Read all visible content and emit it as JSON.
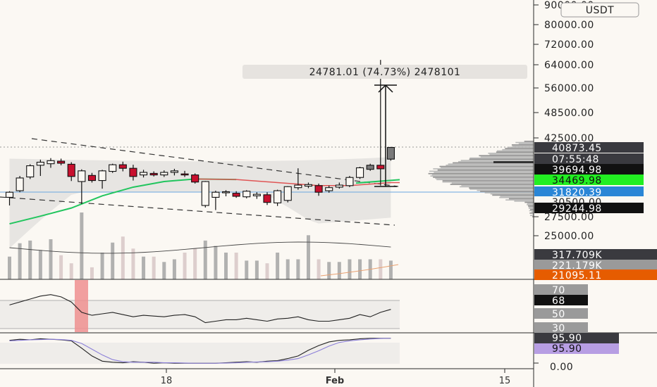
{
  "currency_badge": "USDT",
  "measure_label": "24781.01 (74.73%) 2478101",
  "colors": {
    "background": "#fbf8f3",
    "bull": "#7a7a7a",
    "bear": "#c8102e",
    "ma_green": "#22c55e",
    "ma_red": "#e05555",
    "band_fill": "#e7e5e2",
    "tag_green": "#22ee22",
    "tag_blue": "#2a86d6",
    "tag_orange": "#e65c00",
    "tag_dark": "#3a3a3f",
    "tag_gray": "#9a9a9a",
    "tag_lavender": "#b79ee3",
    "rsi_highlight": "#ef8f8f"
  },
  "chart_data": [
    {
      "type": "candlestick",
      "panel": "price",
      "y_ticks": [
        "90000.00",
        "80000.00",
        "72000.00",
        "64000.00",
        "56000.00",
        "48500.00",
        "42500.00",
        "27500.00",
        "25000.00"
      ],
      "x_ticks": [
        "18",
        "Feb",
        "15"
      ],
      "price_tags": [
        {
          "label": "40873.45",
          "style": "dark"
        },
        {
          "label": "07:55:48",
          "style": "dark"
        },
        {
          "label": "39694.98",
          "style": "black"
        },
        {
          "label": "34469.98",
          "style": "green"
        },
        {
          "label": "31820.39",
          "style": "blue"
        },
        {
          "label": "30500.00",
          "style": "plain"
        },
        {
          "label": "29244.98",
          "style": "black"
        }
      ],
      "candles": [
        {
          "o": 31000,
          "h": 32200,
          "l": 29400,
          "c": 32000
        },
        {
          "o": 32300,
          "h": 35200,
          "l": 32000,
          "c": 34800
        },
        {
          "o": 35000,
          "h": 37500,
          "l": 34600,
          "c": 37200
        },
        {
          "o": 37300,
          "h": 38400,
          "l": 35200,
          "c": 37900
        },
        {
          "o": 37600,
          "h": 38700,
          "l": 36800,
          "c": 38200
        },
        {
          "o": 38100,
          "h": 38600,
          "l": 37300,
          "c": 37700
        },
        {
          "o": 37500,
          "h": 37900,
          "l": 34200,
          "c": 35100
        },
        {
          "o": 34100,
          "h": 36500,
          "l": 29700,
          "c": 36200
        },
        {
          "o": 35300,
          "h": 35800,
          "l": 33900,
          "c": 34300
        },
        {
          "o": 34300,
          "h": 36400,
          "l": 32700,
          "c": 36200
        },
        {
          "o": 36100,
          "h": 37600,
          "l": 35800,
          "c": 37400
        },
        {
          "o": 37400,
          "h": 38000,
          "l": 36100,
          "c": 36700
        },
        {
          "o": 36700,
          "h": 37400,
          "l": 34300,
          "c": 35100
        },
        {
          "o": 35400,
          "h": 36400,
          "l": 34900,
          "c": 35900
        },
        {
          "o": 35700,
          "h": 36100,
          "l": 35100,
          "c": 35400
        },
        {
          "o": 35400,
          "h": 36300,
          "l": 35000,
          "c": 35900
        },
        {
          "o": 35900,
          "h": 36600,
          "l": 35300,
          "c": 36200
        },
        {
          "o": 35600,
          "h": 36200,
          "l": 35000,
          "c": 35400
        },
        {
          "o": 35400,
          "h": 35700,
          "l": 33700,
          "c": 34000
        },
        {
          "o": 29400,
          "h": 34200,
          "l": 29000,
          "c": 34100
        },
        {
          "o": 31000,
          "h": 32300,
          "l": 28500,
          "c": 32000
        },
        {
          "o": 31900,
          "h": 32400,
          "l": 31200,
          "c": 32100
        },
        {
          "o": 31800,
          "h": 32200,
          "l": 30900,
          "c": 31200
        },
        {
          "o": 31100,
          "h": 32400,
          "l": 30800,
          "c": 32200
        },
        {
          "o": 31300,
          "h": 32000,
          "l": 30700,
          "c": 31600
        },
        {
          "o": 31500,
          "h": 32000,
          "l": 29500,
          "c": 30000
        },
        {
          "o": 29900,
          "h": 32500,
          "l": 29300,
          "c": 32300
        },
        {
          "o": 30400,
          "h": 33200,
          "l": 30000,
          "c": 33100
        },
        {
          "o": 32900,
          "h": 36700,
          "l": 32500,
          "c": 33400
        },
        {
          "o": 33200,
          "h": 33900,
          "l": 32800,
          "c": 33500
        },
        {
          "o": 33300,
          "h": 33700,
          "l": 31300,
          "c": 32000
        },
        {
          "o": 32300,
          "h": 33300,
          "l": 31900,
          "c": 32900
        },
        {
          "o": 33000,
          "h": 33900,
          "l": 32700,
          "c": 33400
        },
        {
          "o": 33300,
          "h": 35200,
          "l": 33000,
          "c": 34900
        },
        {
          "o": 34900,
          "h": 37000,
          "l": 34600,
          "c": 36800
        },
        {
          "o": 36500,
          "h": 37600,
          "l": 36200,
          "c": 37300
        },
        {
          "o": 37300,
          "h": 58000,
          "l": 33300,
          "c": 36600
        },
        {
          "o": 38500,
          "h": 40900,
          "l": 38200,
          "c": 40800
        }
      ],
      "ma_curve": [
        {
          "i": 0,
          "v": 25800
        },
        {
          "i": 3,
          "v": 27300
        },
        {
          "i": 6,
          "v": 28900
        },
        {
          "i": 9,
          "v": 31300
        },
        {
          "i": 12,
          "v": 33000
        },
        {
          "i": 15,
          "v": 34100
        },
        {
          "i": 18,
          "v": 34600
        },
        {
          "i": 22,
          "v": 34500
        },
        {
          "i": 26,
          "v": 33900
        },
        {
          "i": 30,
          "v": 33300
        },
        {
          "i": 33,
          "v": 33300
        },
        {
          "i": 37,
          "v": 33900
        }
      ],
      "volume_tags": [
        {
          "label": "317.709K",
          "style": "dark"
        },
        {
          "label": "221.179K",
          "style": "gray"
        },
        {
          "label": "21095.11",
          "style": "orange"
        }
      ],
      "volumes": [
        34,
        54,
        58,
        44,
        60,
        36,
        24,
        100,
        18,
        40,
        55,
        64,
        46,
        34,
        34,
        26,
        30,
        40,
        46,
        58,
        50,
        40,
        40,
        28,
        28,
        24,
        40,
        30,
        30,
        66,
        30,
        26,
        26,
        30,
        30,
        30,
        30,
        28
      ]
    },
    {
      "type": "line",
      "panel": "rsi",
      "y_ticks": [
        "70",
        "50",
        "30"
      ],
      "value_tag": "68",
      "upper": 70,
      "lower": 30
    },
    {
      "type": "line",
      "panel": "stoch",
      "y_ticks": [
        "0.00"
      ],
      "value_tags": [
        "95.90",
        "95.90"
      ]
    }
  ]
}
